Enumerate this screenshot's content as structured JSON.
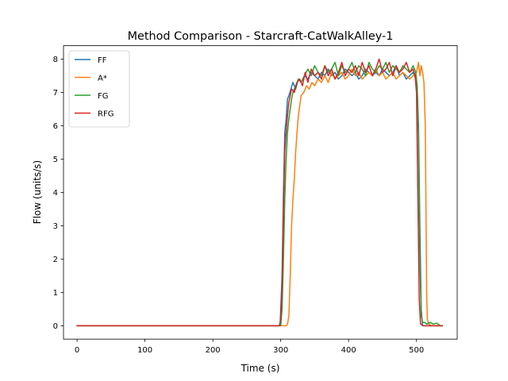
{
  "chart_data": {
    "type": "line",
    "title": "Method Comparison - Starcraft-CatWalkAlley-1",
    "xlabel": "Time (s)",
    "ylabel": "Flow (units/s)",
    "xlim": [
      -20,
      560
    ],
    "ylim": [
      -0.4,
      8.4
    ],
    "xticks": [
      0,
      100,
      200,
      300,
      400,
      500
    ],
    "yticks": [
      0,
      1,
      2,
      3,
      4,
      5,
      6,
      7,
      8
    ],
    "grid": false,
    "legend_position": "top-left",
    "series": [
      {
        "name": "FF",
        "color": "#1f77b4",
        "points": [
          [
            0,
            0
          ],
          [
            100,
            0
          ],
          [
            200,
            0
          ],
          [
            299,
            0
          ],
          [
            302,
            1.5
          ],
          [
            304,
            4.0
          ],
          [
            306,
            5.8
          ],
          [
            308,
            6.2
          ],
          [
            310,
            6.8
          ],
          [
            312,
            6.9
          ],
          [
            315,
            7.1
          ],
          [
            318,
            7.3
          ],
          [
            322,
            7.1
          ],
          [
            326,
            7.4
          ],
          [
            330,
            7.3
          ],
          [
            335,
            7.5
          ],
          [
            340,
            7.4
          ],
          [
            345,
            7.6
          ],
          [
            350,
            7.5
          ],
          [
            355,
            7.4
          ],
          [
            360,
            7.6
          ],
          [
            365,
            7.5
          ],
          [
            370,
            7.7
          ],
          [
            375,
            7.5
          ],
          [
            380,
            7.6
          ],
          [
            385,
            7.4
          ],
          [
            390,
            7.5
          ],
          [
            395,
            7.7
          ],
          [
            400,
            7.6
          ],
          [
            405,
            7.5
          ],
          [
            410,
            7.6
          ],
          [
            415,
            7.4
          ],
          [
            420,
            7.5
          ],
          [
            425,
            7.7
          ],
          [
            430,
            7.6
          ],
          [
            435,
            7.5
          ],
          [
            440,
            7.6
          ],
          [
            445,
            7.5
          ],
          [
            450,
            7.7
          ],
          [
            455,
            7.6
          ],
          [
            460,
            7.5
          ],
          [
            465,
            7.6
          ],
          [
            470,
            7.8
          ],
          [
            475,
            7.5
          ],
          [
            480,
            7.6
          ],
          [
            485,
            7.4
          ],
          [
            490,
            7.5
          ],
          [
            495,
            7.6
          ],
          [
            499,
            7.4
          ],
          [
            501,
            7.2
          ],
          [
            503,
            6.0
          ],
          [
            505,
            3.0
          ],
          [
            507,
            0.5
          ],
          [
            509,
            0
          ],
          [
            515,
            0
          ],
          [
            520,
            0
          ],
          [
            530,
            0
          ],
          [
            538,
            0
          ]
        ]
      },
      {
        "name": "A*",
        "color": "#ff7f0e",
        "points": [
          [
            0,
            0
          ],
          [
            100,
            0
          ],
          [
            200,
            0
          ],
          [
            300,
            0
          ],
          [
            308,
            0
          ],
          [
            310,
            0.05
          ],
          [
            312,
            0.3
          ],
          [
            314,
            1.5
          ],
          [
            316,
            3.0
          ],
          [
            318,
            3.8
          ],
          [
            320,
            4.4
          ],
          [
            322,
            5.2
          ],
          [
            324,
            5.8
          ],
          [
            326,
            6.3
          ],
          [
            328,
            6.6
          ],
          [
            330,
            6.9
          ],
          [
            334,
            7.0
          ],
          [
            338,
            7.2
          ],
          [
            342,
            7.1
          ],
          [
            346,
            7.3
          ],
          [
            350,
            7.2
          ],
          [
            355,
            7.4
          ],
          [
            360,
            7.3
          ],
          [
            365,
            7.5
          ],
          [
            370,
            7.3
          ],
          [
            375,
            7.6
          ],
          [
            380,
            7.4
          ],
          [
            385,
            7.5
          ],
          [
            390,
            7.6
          ],
          [
            395,
            7.4
          ],
          [
            400,
            7.5
          ],
          [
            405,
            7.7
          ],
          [
            410,
            7.5
          ],
          [
            415,
            7.6
          ],
          [
            420,
            7.4
          ],
          [
            425,
            7.5
          ],
          [
            430,
            7.6
          ],
          [
            435,
            7.5
          ],
          [
            440,
            7.7
          ],
          [
            445,
            7.5
          ],
          [
            450,
            7.6
          ],
          [
            455,
            7.4
          ],
          [
            460,
            7.5
          ],
          [
            465,
            7.6
          ],
          [
            470,
            7.4
          ],
          [
            475,
            7.5
          ],
          [
            480,
            7.6
          ],
          [
            485,
            7.5
          ],
          [
            490,
            7.4
          ],
          [
            495,
            7.5
          ],
          [
            500,
            7.6
          ],
          [
            503,
            7.9
          ],
          [
            505,
            7.5
          ],
          [
            507,
            7.8
          ],
          [
            509,
            7.6
          ],
          [
            511,
            7.3
          ],
          [
            513,
            6.0
          ],
          [
            514,
            3.5
          ],
          [
            515,
            1.0
          ],
          [
            516,
            0.2
          ],
          [
            518,
            0.05
          ],
          [
            522,
            0
          ],
          [
            530,
            0
          ],
          [
            538,
            0
          ]
        ]
      },
      {
        "name": "FG",
        "color": "#2ca02c",
        "points": [
          [
            0,
            0
          ],
          [
            100,
            0
          ],
          [
            200,
            0
          ],
          [
            300,
            0
          ],
          [
            302,
            0.5
          ],
          [
            304,
            2.0
          ],
          [
            306,
            3.8
          ],
          [
            308,
            5.0
          ],
          [
            310,
            5.8
          ],
          [
            312,
            6.2
          ],
          [
            314,
            6.5
          ],
          [
            316,
            6.8
          ],
          [
            318,
            7.0
          ],
          [
            322,
            7.2
          ],
          [
            326,
            7.4
          ],
          [
            330,
            7.3
          ],
          [
            335,
            7.5
          ],
          [
            340,
            7.7
          ],
          [
            345,
            7.5
          ],
          [
            350,
            7.8
          ],
          [
            355,
            7.6
          ],
          [
            360,
            7.5
          ],
          [
            365,
            7.8
          ],
          [
            370,
            7.6
          ],
          [
            375,
            7.7
          ],
          [
            380,
            7.9
          ],
          [
            385,
            7.5
          ],
          [
            390,
            7.8
          ],
          [
            395,
            7.6
          ],
          [
            400,
            7.7
          ],
          [
            405,
            7.9
          ],
          [
            410,
            7.6
          ],
          [
            415,
            7.8
          ],
          [
            420,
            7.7
          ],
          [
            425,
            7.5
          ],
          [
            430,
            7.9
          ],
          [
            435,
            7.7
          ],
          [
            440,
            7.6
          ],
          [
            445,
            7.8
          ],
          [
            450,
            7.7
          ],
          [
            455,
            7.9
          ],
          [
            460,
            7.6
          ],
          [
            465,
            7.8
          ],
          [
            470,
            7.7
          ],
          [
            475,
            7.6
          ],
          [
            480,
            7.8
          ],
          [
            485,
            7.7
          ],
          [
            490,
            7.6
          ],
          [
            495,
            7.8
          ],
          [
            499,
            7.6
          ],
          [
            501,
            7.2
          ],
          [
            503,
            5.5
          ],
          [
            505,
            2.0
          ],
          [
            507,
            0.3
          ],
          [
            509,
            0.1
          ],
          [
            512,
            0.1
          ],
          [
            515,
            0.05
          ],
          [
            520,
            0.1
          ],
          [
            525,
            0.05
          ],
          [
            530,
            0.08
          ],
          [
            535,
            0
          ],
          [
            538,
            0
          ]
        ]
      },
      {
        "name": "RFG",
        "color": "#d62728",
        "points": [
          [
            0,
            0
          ],
          [
            100,
            0
          ],
          [
            200,
            0
          ],
          [
            298,
            0
          ],
          [
            300,
            0.2
          ],
          [
            302,
            1.2
          ],
          [
            304,
            3.5
          ],
          [
            306,
            5.2
          ],
          [
            308,
            5.8
          ],
          [
            310,
            6.3
          ],
          [
            312,
            6.7
          ],
          [
            314,
            6.9
          ],
          [
            316,
            7.1
          ],
          [
            320,
            7.0
          ],
          [
            324,
            7.3
          ],
          [
            328,
            7.4
          ],
          [
            332,
            7.2
          ],
          [
            336,
            7.6
          ],
          [
            340,
            7.3
          ],
          [
            345,
            7.7
          ],
          [
            350,
            7.5
          ],
          [
            355,
            7.6
          ],
          [
            360,
            7.4
          ],
          [
            365,
            7.8
          ],
          [
            370,
            7.5
          ],
          [
            375,
            7.7
          ],
          [
            380,
            7.4
          ],
          [
            385,
            7.6
          ],
          [
            390,
            7.9
          ],
          [
            395,
            7.5
          ],
          [
            400,
            7.7
          ],
          [
            405,
            7.6
          ],
          [
            410,
            7.8
          ],
          [
            415,
            7.5
          ],
          [
            420,
            7.9
          ],
          [
            425,
            7.6
          ],
          [
            430,
            7.8
          ],
          [
            435,
            7.5
          ],
          [
            440,
            7.7
          ],
          [
            445,
            8.0
          ],
          [
            450,
            7.6
          ],
          [
            455,
            7.7
          ],
          [
            460,
            7.9
          ],
          [
            465,
            7.5
          ],
          [
            470,
            7.8
          ],
          [
            475,
            7.6
          ],
          [
            480,
            7.7
          ],
          [
            485,
            7.9
          ],
          [
            490,
            7.6
          ],
          [
            495,
            7.7
          ],
          [
            498,
            7.5
          ],
          [
            500,
            7.0
          ],
          [
            502,
            4.0
          ],
          [
            504,
            0.8
          ],
          [
            506,
            0.05
          ],
          [
            510,
            0
          ],
          [
            520,
            0
          ],
          [
            530,
            0
          ],
          [
            538,
            0
          ]
        ]
      }
    ]
  }
}
